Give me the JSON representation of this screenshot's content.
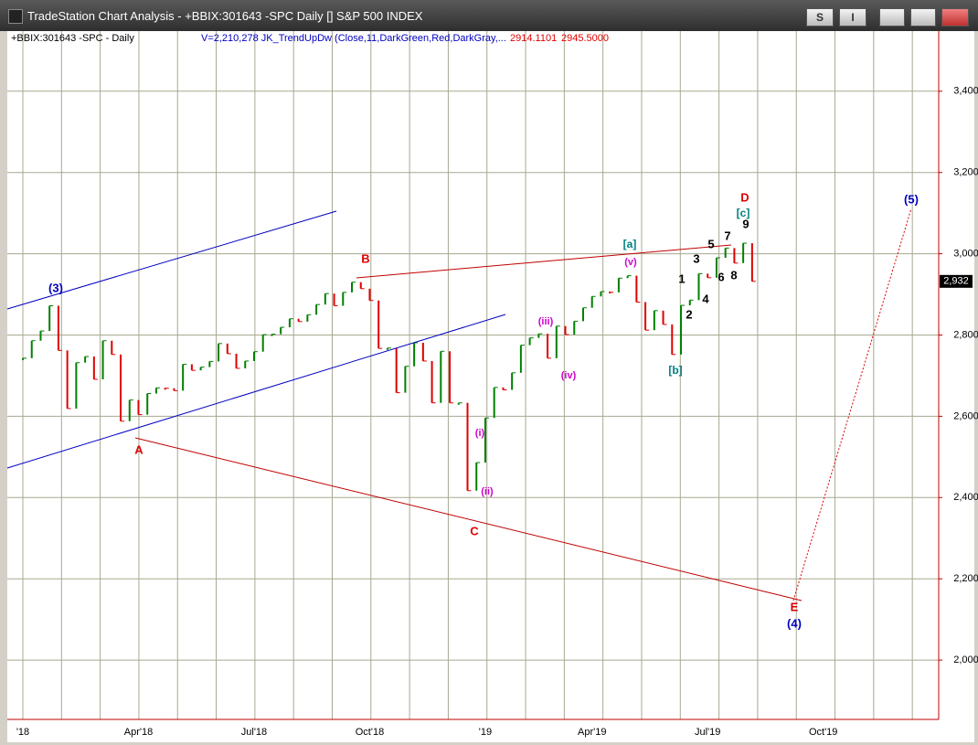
{
  "window": {
    "title": "TradeStation Chart Analysis - +BBIX:301643 -SPC Daily [] S&P 500 INDEX",
    "buttons": [
      "S",
      "I"
    ]
  },
  "chart_data": {
    "type": "bar",
    "header": {
      "symbol": "+BBIX:301643 -SPC - Daily",
      "indicator": "V=2,210,278  JK_TrendUpDw (Close,11,DarkGreen,Red,DarkGray,...",
      "value1": "2914.1101",
      "value2": "2945.5000"
    },
    "categories": [
      "'18",
      null,
      null,
      null,
      null,
      null,
      null,
      null,
      null,
      null,
      null,
      null,
      null,
      "Apr'18",
      null,
      null,
      null,
      null,
      null,
      null,
      null,
      null,
      null,
      null,
      null,
      null,
      "Jul'18",
      null,
      null,
      null,
      null,
      null,
      null,
      null,
      null,
      null,
      null,
      null,
      null,
      "Oct'18",
      null,
      null,
      null,
      null,
      null,
      null,
      null,
      null,
      null,
      null,
      null,
      null,
      "'19",
      null,
      null,
      null,
      null,
      null,
      null,
      null,
      null,
      null,
      null,
      null,
      "Apr'19",
      null,
      null,
      null,
      null,
      null,
      null,
      null,
      null,
      null,
      null,
      null,
      null,
      "Jul'19",
      null,
      null,
      null,
      null,
      null,
      null,
      null,
      null,
      null,
      null,
      null,
      null,
      "Oct'19",
      null,
      null,
      null,
      null,
      null,
      null,
      null,
      null,
      null,
      null,
      null,
      null,
      null
    ],
    "series": [
      {
        "up_color": "#008000",
        "down_color": "#e00000",
        "values": [
          2743,
          2786,
          2810,
          2872,
          2762,
          2619,
          2732,
          2747,
          2691,
          2786,
          2752,
          2588,
          2640,
          2604,
          2656,
          2670,
          2669,
          2663,
          2728,
          2713,
          2721,
          2735,
          2779,
          2754,
          2718,
          2736,
          2759,
          2801,
          2802,
          2819,
          2840,
          2833,
          2850,
          2875,
          2902,
          2872,
          2905,
          2930,
          2914,
          2885,
          2767,
          2768,
          2658,
          2723,
          2781,
          2736,
          2633,
          2760,
          2633,
          2633,
          2417,
          2486,
          2596,
          2671,
          2665,
          2707,
          2775,
          2793,
          2803,
          2743,
          2822,
          2801,
          2834,
          2867,
          2895,
          2907,
          2905,
          2940,
          2946,
          2881,
          2812,
          2860,
          2826,
          2752,
          2873,
          2886,
          2951,
          2941,
          2990,
          3014,
          2977,
          3026,
          2932,
          null,
          null,
          null,
          null,
          null,
          null,
          null,
          null,
          null,
          null,
          null,
          null,
          null,
          null,
          null,
          null,
          null,
          null,
          null,
          null,
          null
        ]
      }
    ],
    "last_price_label": "2,932",
    "ylim": [
      1854,
      3548
    ],
    "yticks": [
      {
        "value": 2000,
        "label": "2,000"
      },
      {
        "value": 2200,
        "label": "2,200"
      },
      {
        "value": 2400,
        "label": "2,400"
      },
      {
        "value": 2600,
        "label": "2,600"
      },
      {
        "value": 2800,
        "label": "2,800"
      },
      {
        "value": 3000,
        "label": "3,000"
      },
      {
        "value": 3200,
        "label": "3,200"
      },
      {
        "value": 3400,
        "label": "3,400"
      }
    ],
    "grid": true,
    "annotations": [
      "(3)",
      "A",
      "B",
      "C",
      "D",
      "E",
      "(4)",
      "(5)",
      "(i)",
      "(ii)",
      "(iii)",
      "(iv)",
      "(v)",
      "[a]",
      "[b]",
      "[c]",
      "1",
      "2",
      "3",
      "4",
      "5",
      "6",
      "7",
      "8",
      "9"
    ]
  }
}
